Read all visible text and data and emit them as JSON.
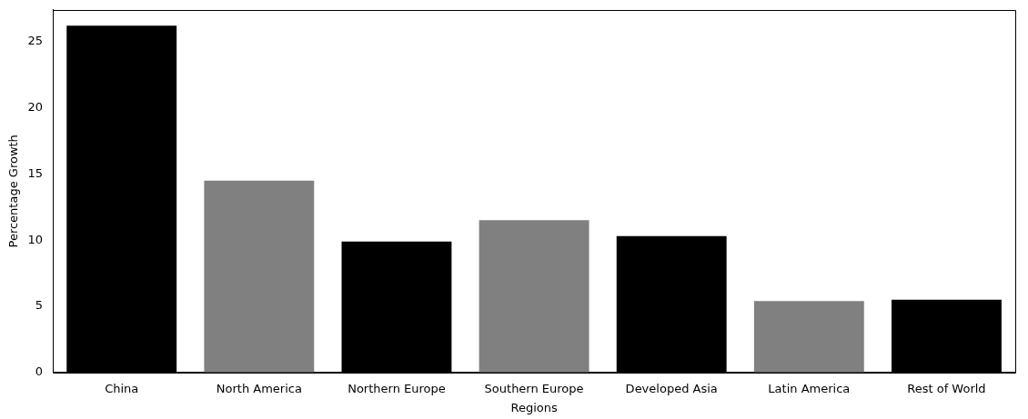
{
  "chart_data": {
    "type": "bar",
    "xlabel": "Regions",
    "ylabel": "Percentage Growth",
    "categories": [
      "China",
      "North America",
      "Northern Europe",
      "Southern Europe",
      "Developed Asia",
      "Latin America",
      "Rest of World"
    ],
    "values": [
      26.2,
      14.5,
      9.9,
      11.5,
      10.3,
      5.4,
      5.5
    ],
    "colors": [
      "#000000",
      "#808080",
      "#000000",
      "#808080",
      "#000000",
      "#808080",
      "#000000"
    ],
    "ylim": [
      0,
      27.4
    ],
    "yticks": [
      0,
      5,
      10,
      15,
      20,
      25
    ],
    "grid": false,
    "legend": false
  }
}
